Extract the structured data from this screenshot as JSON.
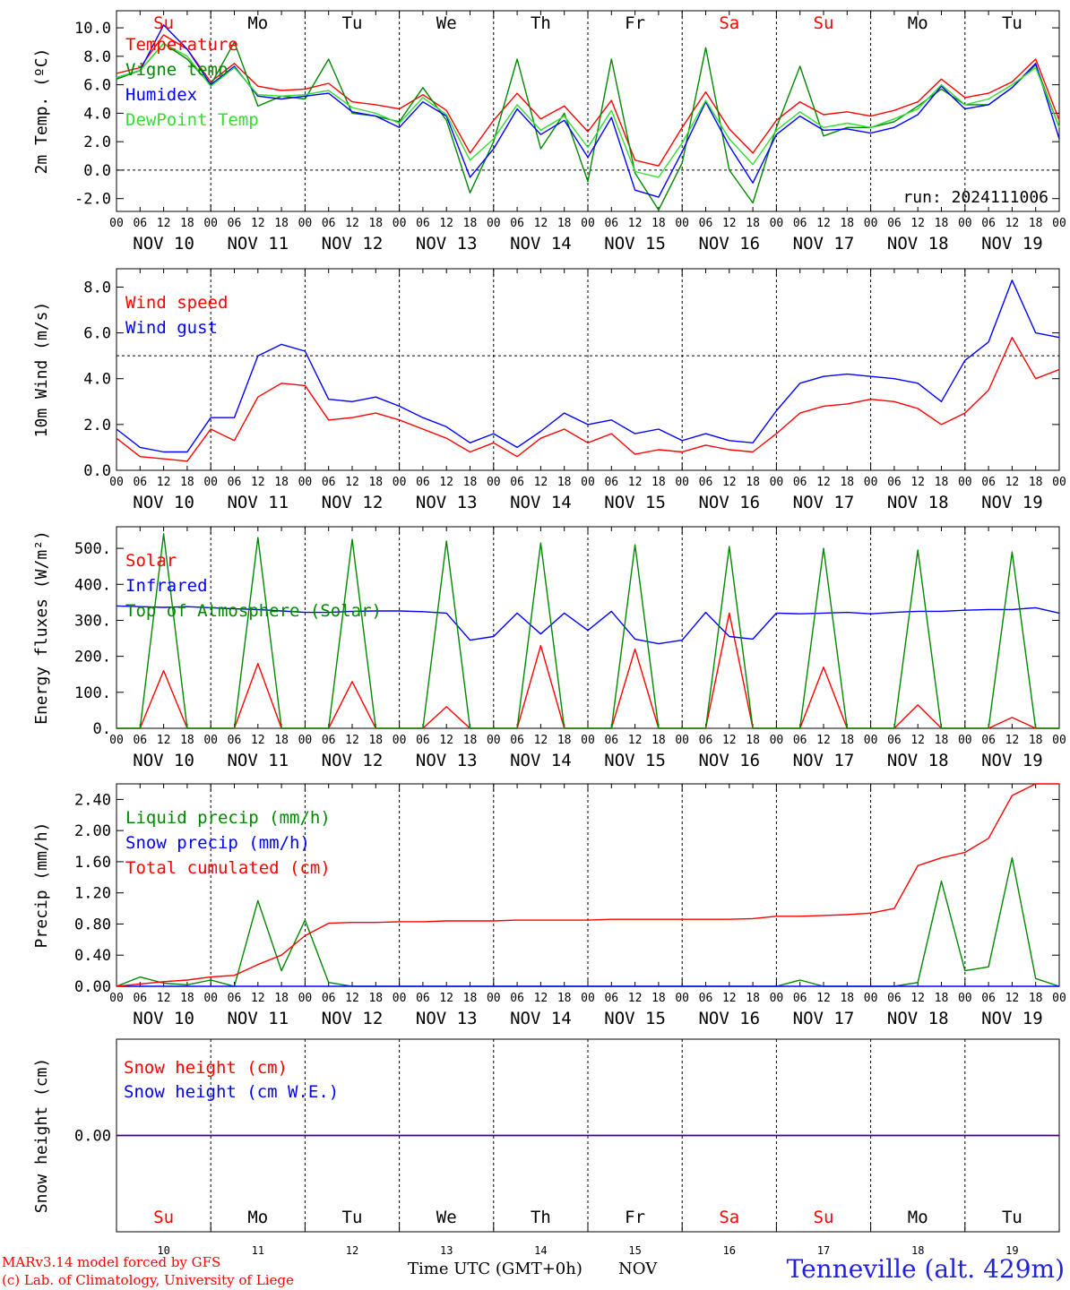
{
  "meta": {
    "days": 10,
    "day_numbers": [
      "10",
      "11",
      "12",
      "13",
      "14",
      "15",
      "16",
      "17",
      "18",
      "19"
    ]
  },
  "weekday_labels": [
    {
      "text": "Su",
      "color": "#ff0000"
    },
    {
      "text": "Mo",
      "color": "#000000"
    },
    {
      "text": "Tu",
      "color": "#000000"
    },
    {
      "text": "We",
      "color": "#000000"
    },
    {
      "text": "Th",
      "color": "#000000"
    },
    {
      "text": "Fr",
      "color": "#000000"
    },
    {
      "text": "Sa",
      "color": "#ff0000"
    },
    {
      "text": "Su",
      "color": "#ff0000"
    },
    {
      "text": "Mo",
      "color": "#000000"
    },
    {
      "text": "Tu",
      "color": "#000000"
    }
  ],
  "date_labels": [
    "NOV 10",
    "NOV 11",
    "NOV 12",
    "NOV 13",
    "NOV 14",
    "NOV 15",
    "NOV 16",
    "NOV 17",
    "NOV 18",
    "NOV 19"
  ],
  "hour_ticks": [
    "00",
    "06",
    "12",
    "18"
  ],
  "footer": {
    "credit_line1": "MARv3.14 model forced by GFS",
    "credit_line2": "(c) Lab. of Climatology, University of Liege",
    "xaxis_title": "Time UTC (GMT+0h)",
    "month": "NOV",
    "station": "Tenneville (alt. 429m)"
  },
  "chart_data": [
    {
      "type": "line",
      "ylabel": "2m Temp. (ºC)",
      "ylim": [
        -2.9,
        11.2
      ],
      "yticks": [
        "-2.0",
        "0.0",
        "2.0",
        "4.0",
        "6.0",
        "8.0",
        "10.0"
      ],
      "ytick_values": [
        -2,
        0,
        2,
        4,
        6,
        8,
        10
      ],
      "ref_line": 0.0,
      "annotation": "run: 2024111006",
      "legend": "top-left",
      "x": [
        0,
        6,
        12,
        18,
        24,
        30,
        36,
        42,
        48,
        54,
        60,
        66,
        72,
        78,
        84,
        90,
        96,
        102,
        108,
        114,
        120,
        126,
        132,
        138,
        144,
        150,
        156,
        162,
        168,
        174,
        180,
        186,
        192,
        198,
        204,
        210,
        216,
        222,
        228,
        234,
        240
      ],
      "series": [
        {
          "name": "Temperature",
          "color": "#ff0000",
          "values": [
            6.8,
            7.2,
            9.5,
            8.5,
            6.2,
            7.5,
            5.9,
            5.6,
            5.7,
            6.1,
            4.8,
            4.6,
            4.3,
            5.3,
            4.2,
            1.2,
            3.5,
            5.4,
            3.6,
            4.5,
            2.7,
            4.9,
            0.7,
            0.3,
            3.0,
            5.5,
            2.9,
            1.2,
            3.5,
            4.8,
            3.9,
            4.1,
            3.8,
            4.2,
            4.8,
            6.4,
            5.1,
            5.4,
            6.2,
            7.8,
            3.5
          ]
        },
        {
          "name": "Vigne temp",
          "color": "#008800",
          "values": [
            6.4,
            7.0,
            8.9,
            7.8,
            6.0,
            9.0,
            4.5,
            5.2,
            5.0,
            7.8,
            4.0,
            3.8,
            3.4,
            5.8,
            3.5,
            -1.6,
            2.0,
            7.8,
            1.5,
            4.0,
            -0.8,
            7.8,
            -0.2,
            -2.8,
            0.5,
            8.6,
            0.0,
            -2.3,
            3.0,
            7.3,
            2.4,
            3.0,
            3.0,
            3.4,
            4.5,
            5.7,
            4.6,
            4.6,
            5.8,
            7.4,
            3.0
          ]
        },
        {
          "name": "Humidex",
          "color": "#0000ff",
          "values": [
            6.5,
            7.0,
            10.2,
            8.5,
            6.0,
            7.3,
            5.2,
            5.0,
            5.2,
            5.4,
            4.1,
            3.8,
            3.0,
            4.8,
            3.8,
            -0.5,
            1.5,
            4.3,
            2.5,
            3.5,
            0.9,
            3.7,
            -1.4,
            -1.9,
            1.3,
            4.8,
            1.7,
            -0.9,
            2.5,
            3.8,
            2.8,
            2.9,
            2.6,
            3.0,
            3.9,
            5.9,
            4.3,
            4.6,
            5.8,
            7.5,
            2.2
          ]
        },
        {
          "name": "DewPoint Temp",
          "color": "#33dd33",
          "values": [
            6.5,
            7.0,
            8.9,
            8.0,
            5.9,
            7.2,
            5.3,
            5.2,
            5.3,
            5.6,
            4.4,
            4.0,
            3.3,
            5.1,
            3.9,
            0.7,
            2.2,
            4.6,
            2.8,
            3.8,
            1.6,
            4.2,
            -0.1,
            -0.5,
            1.9,
            4.9,
            2.2,
            0.4,
            2.8,
            4.1,
            3.0,
            3.3,
            3.0,
            3.6,
            4.3,
            6.0,
            4.6,
            5.0,
            6.0,
            7.2,
            3.0
          ]
        }
      ]
    },
    {
      "type": "line",
      "ylabel": "10m Wind (m/s)",
      "ylim": [
        0,
        8.8
      ],
      "yticks": [
        "0.0",
        "2.0",
        "4.0",
        "6.0",
        "8.0"
      ],
      "ytick_values": [
        0,
        2,
        4,
        6,
        8
      ],
      "ref_line": 5.0,
      "legend": "top-left",
      "x": [
        0,
        6,
        12,
        18,
        24,
        30,
        36,
        42,
        48,
        54,
        60,
        66,
        72,
        78,
        84,
        90,
        96,
        102,
        108,
        114,
        120,
        126,
        132,
        138,
        144,
        150,
        156,
        162,
        168,
        174,
        180,
        186,
        192,
        198,
        204,
        210,
        216,
        222,
        228,
        234,
        240
      ],
      "series": [
        {
          "name": "Wind speed",
          "color": "#ff0000",
          "values": [
            1.4,
            0.6,
            0.5,
            0.4,
            1.8,
            1.3,
            3.2,
            3.8,
            3.7,
            2.2,
            2.3,
            2.5,
            2.2,
            1.8,
            1.4,
            0.8,
            1.2,
            0.6,
            1.4,
            1.8,
            1.2,
            1.6,
            0.7,
            0.9,
            0.8,
            1.1,
            0.9,
            0.8,
            1.6,
            2.5,
            2.8,
            2.9,
            3.1,
            3.0,
            2.7,
            2.0,
            2.5,
            3.5,
            5.8,
            4.0,
            4.4
          ]
        },
        {
          "name": "Wind gust",
          "color": "#0000ff",
          "values": [
            1.8,
            1.0,
            0.8,
            0.8,
            2.3,
            2.3,
            5.0,
            5.5,
            5.2,
            3.1,
            3.0,
            3.2,
            2.8,
            2.3,
            1.9,
            1.2,
            1.6,
            1.0,
            1.7,
            2.5,
            2.0,
            2.2,
            1.6,
            1.8,
            1.3,
            1.6,
            1.3,
            1.2,
            2.6,
            3.8,
            4.1,
            4.2,
            4.1,
            4.0,
            3.8,
            3.0,
            4.8,
            5.6,
            8.3,
            6.0,
            5.8
          ]
        }
      ]
    },
    {
      "type": "line",
      "ylabel": "Energy fluxes (W/m²)",
      "ylim": [
        0,
        560
      ],
      "yticks": [
        "0.",
        "100.",
        "200.",
        "300.",
        "400.",
        "500."
      ],
      "ytick_values": [
        0,
        100,
        200,
        300,
        400,
        500
      ],
      "legend": "top-left",
      "x": [
        0,
        6,
        12,
        18,
        24,
        30,
        36,
        42,
        48,
        54,
        60,
        66,
        72,
        78,
        84,
        90,
        96,
        102,
        108,
        114,
        120,
        126,
        132,
        138,
        144,
        150,
        156,
        162,
        168,
        174,
        180,
        186,
        192,
        198,
        204,
        210,
        216,
        222,
        228,
        234,
        240
      ],
      "series": [
        {
          "name": "Solar",
          "color": "#ff0000",
          "values": [
            0,
            0,
            160,
            0,
            0,
            0,
            180,
            0,
            0,
            0,
            130,
            0,
            0,
            0,
            60,
            0,
            0,
            0,
            230,
            0,
            0,
            0,
            220,
            0,
            0,
            0,
            320,
            0,
            0,
            0,
            170,
            0,
            0,
            0,
            65,
            0,
            0,
            0,
            30,
            0,
            0
          ]
        },
        {
          "name": "Infrared",
          "color": "#0000ff",
          "values": [
            340,
            338,
            336,
            338,
            335,
            332,
            330,
            326,
            322,
            322,
            325,
            326,
            326,
            324,
            320,
            245,
            255,
            320,
            262,
            320,
            272,
            325,
            248,
            235,
            245,
            322,
            255,
            248,
            320,
            318,
            320,
            322,
            318,
            322,
            325,
            325,
            328,
            330,
            330,
            335,
            320
          ]
        },
        {
          "name": "Top of Atmosphere (Solar)",
          "color": "#008800",
          "values": [
            0,
            0,
            540,
            0,
            0,
            0,
            530,
            0,
            0,
            0,
            525,
            0,
            0,
            0,
            520,
            0,
            0,
            0,
            515,
            0,
            0,
            0,
            510,
            0,
            0,
            0,
            505,
            0,
            0,
            0,
            500,
            0,
            0,
            0,
            495,
            0,
            0,
            0,
            490,
            0,
            0
          ]
        }
      ]
    },
    {
      "type": "line",
      "ylabel": "Precip (mm/h)",
      "ylim": [
        0,
        2.6
      ],
      "yticks": [
        "0.00",
        "0.40",
        "0.80",
        "1.20",
        "1.60",
        "2.00",
        "2.40"
      ],
      "ytick_values": [
        0,
        0.4,
        0.8,
        1.2,
        1.6,
        2.0,
        2.4
      ],
      "legend": "top-left",
      "x": [
        0,
        6,
        12,
        18,
        24,
        30,
        36,
        42,
        48,
        54,
        60,
        66,
        72,
        78,
        84,
        90,
        96,
        102,
        108,
        114,
        120,
        126,
        132,
        138,
        144,
        150,
        156,
        162,
        168,
        174,
        180,
        186,
        192,
        198,
        204,
        210,
        216,
        222,
        228,
        234,
        240
      ],
      "series": [
        {
          "name": "Liquid precip (mm/h)",
          "color": "#008800",
          "values": [
            0,
            0.12,
            0.04,
            0.02,
            0.08,
            0,
            1.1,
            0.2,
            0.85,
            0.05,
            0,
            0,
            0,
            0,
            0,
            0,
            0,
            0,
            0,
            0,
            0,
            0,
            0,
            0,
            0,
            0,
            0,
            0,
            0,
            0.08,
            0,
            0,
            0,
            0,
            0.05,
            1.35,
            0.2,
            0.25,
            1.65,
            0.1,
            0
          ]
        },
        {
          "name": "Snow precip (mm/h)",
          "color": "#0000ff",
          "values": [
            0,
            0,
            0,
            0,
            0,
            0,
            0,
            0,
            0,
            0,
            0,
            0,
            0,
            0,
            0,
            0,
            0,
            0,
            0,
            0,
            0,
            0,
            0,
            0,
            0,
            0,
            0,
            0,
            0,
            0,
            0,
            0,
            0,
            0,
            0,
            0,
            0,
            0,
            0,
            0,
            0
          ]
        },
        {
          "name": "Total cumulated (cm)",
          "color": "#ff0000",
          "values": [
            0,
            0.03,
            0.06,
            0.08,
            0.12,
            0.14,
            0.28,
            0.4,
            0.65,
            0.81,
            0.82,
            0.82,
            0.83,
            0.83,
            0.84,
            0.84,
            0.84,
            0.85,
            0.85,
            0.85,
            0.85,
            0.86,
            0.86,
            0.86,
            0.86,
            0.86,
            0.86,
            0.87,
            0.9,
            0.9,
            0.91,
            0.92,
            0.94,
            1.0,
            1.55,
            1.65,
            1.72,
            1.9,
            2.45,
            2.6,
            2.6
          ]
        }
      ]
    },
    {
      "type": "line",
      "ylabel": "Snow height (cm)",
      "ylim": [
        -1,
        1
      ],
      "yticks": [
        "0.00"
      ],
      "ytick_values": [
        0
      ],
      "legend": "top-left",
      "x": [
        0,
        240
      ],
      "series": [
        {
          "name": "Snow height (cm)",
          "color": "#ff0000",
          "values": [
            0,
            0
          ]
        },
        {
          "name": "Snow height (cm W.E.)",
          "color": "#0000ff",
          "values": [
            0,
            0
          ]
        }
      ]
    }
  ]
}
